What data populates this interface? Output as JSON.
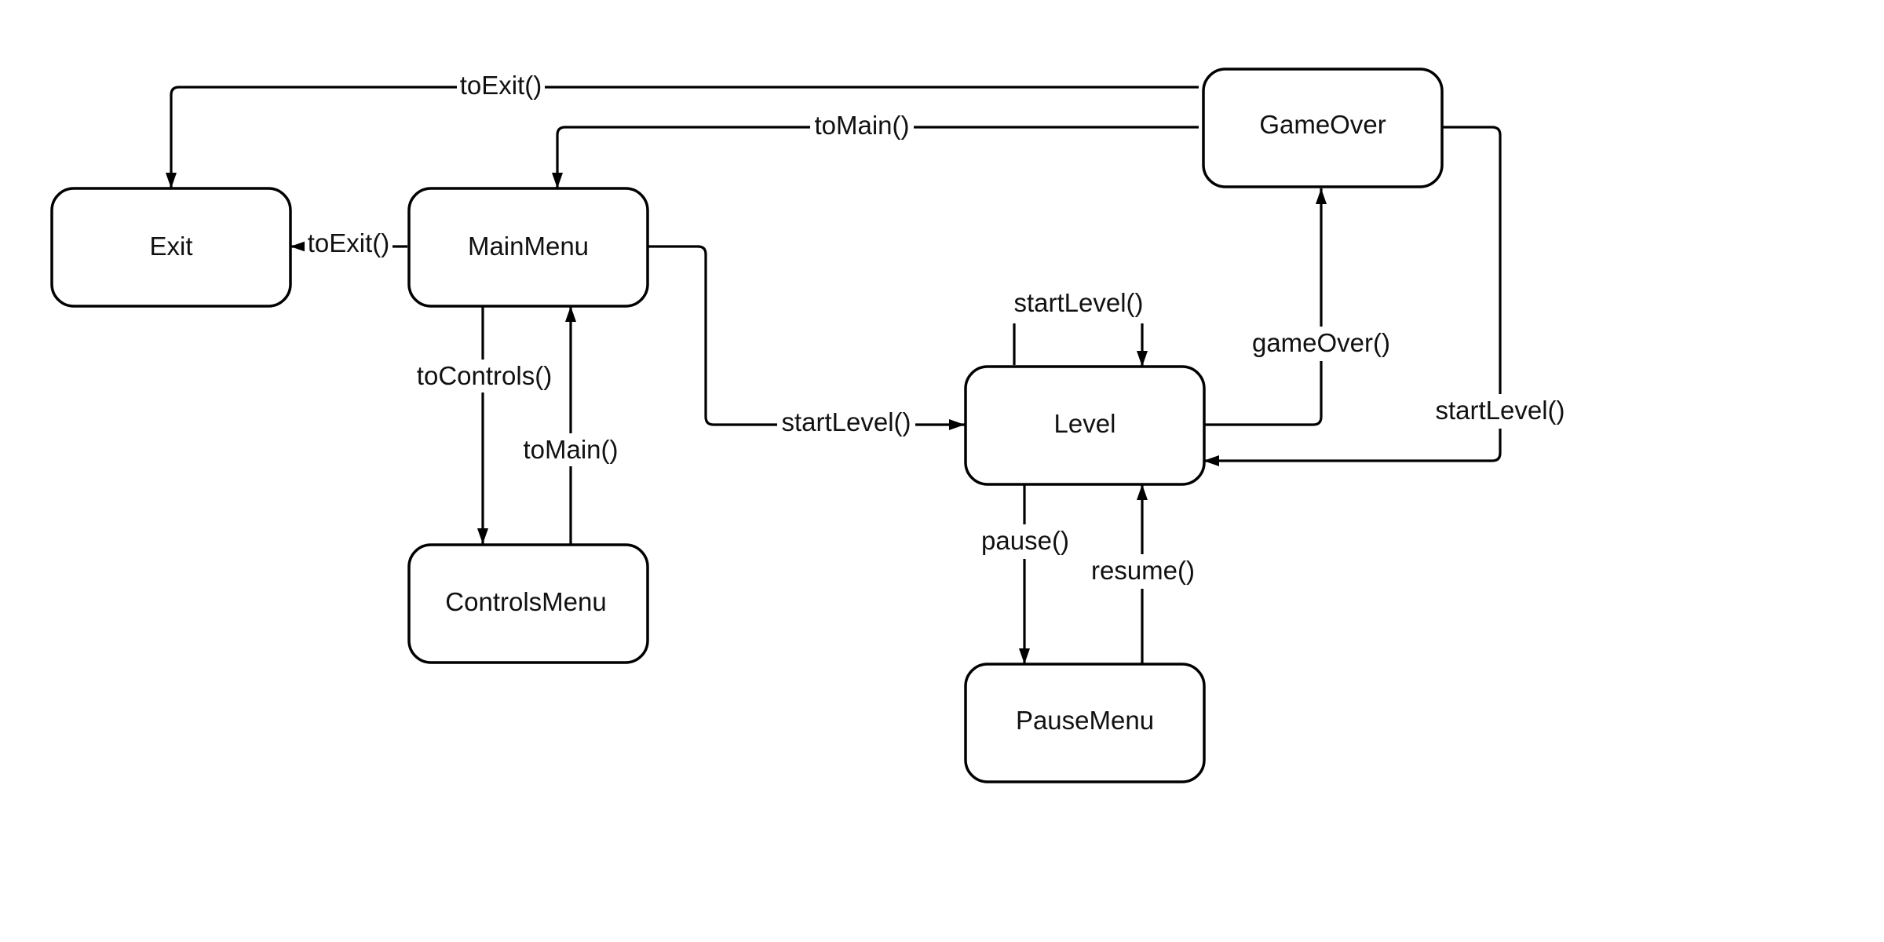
{
  "colors": {
    "line": "#000000",
    "node_fill": "#ffffff",
    "text": "#111111",
    "background": "#ffffff"
  },
  "nodes": {
    "exit": "Exit",
    "main_menu": "MainMenu",
    "controls_menu": "ControlsMenu",
    "level": "Level",
    "pause_menu": "PauseMenu",
    "game_over": "GameOver"
  },
  "edges": {
    "gameover_to_exit": "toExit()",
    "gameover_to_main": "toMain()",
    "main_to_exit": "toExit()",
    "main_to_controls": "toControls()",
    "controls_to_main": "toMain()",
    "main_to_level": "startLevel()",
    "level_restart": "startLevel()",
    "level_to_gameover": "gameOver()",
    "gameover_to_level": "startLevel()",
    "level_to_pause": "pause()",
    "pause_to_level": "resume()"
  }
}
